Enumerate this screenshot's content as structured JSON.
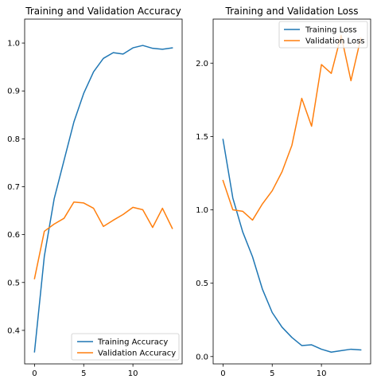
{
  "chart_data": [
    {
      "type": "line",
      "title": "Training and Validation Accuracy",
      "xlabel": "",
      "ylabel": "",
      "xlim": [
        -1,
        15
      ],
      "ylim": [
        0.33,
        1.05
      ],
      "x": [
        0,
        1,
        2,
        3,
        4,
        5,
        6,
        7,
        8,
        9,
        10,
        11,
        12,
        13,
        14
      ],
      "xticks": [
        0,
        5,
        10
      ],
      "xtick_labels": [
        "0",
        "5",
        "10"
      ],
      "yticks": [
        0.4,
        0.5,
        0.6,
        0.7,
        0.8,
        0.9,
        1.0
      ],
      "ytick_labels": [
        "0.4",
        "0.5",
        "0.6",
        "0.7",
        "0.8",
        "0.9",
        "1.0"
      ],
      "legend_position": "lower-right",
      "series": [
        {
          "name": "Training Accuracy",
          "color": "#1f77b4",
          "values": [
            0.355,
            0.555,
            0.675,
            0.755,
            0.835,
            0.895,
            0.94,
            0.968,
            0.98,
            0.977,
            0.99,
            0.995,
            0.989,
            0.987,
            0.99
          ]
        },
        {
          "name": "Validation Accuracy",
          "color": "#ff7f0e",
          "values": [
            0.508,
            0.607,
            0.622,
            0.634,
            0.668,
            0.666,
            0.655,
            0.617,
            0.63,
            0.642,
            0.657,
            0.652,
            0.615,
            0.655,
            0.613
          ]
        }
      ]
    },
    {
      "type": "line",
      "title": "Training and Validation Loss",
      "xlabel": "",
      "ylabel": "",
      "xlim": [
        -1,
        15
      ],
      "ylim": [
        -0.05,
        2.3
      ],
      "x": [
        0,
        1,
        2,
        3,
        4,
        5,
        6,
        7,
        8,
        9,
        10,
        11,
        12,
        13,
        14
      ],
      "xticks": [
        0,
        5,
        10
      ],
      "xtick_labels": [
        "0",
        "5",
        "10"
      ],
      "yticks": [
        0.0,
        0.5,
        1.0,
        1.5,
        2.0
      ],
      "ytick_labels": [
        "0.0",
        "0.5",
        "1.0",
        "1.5",
        "2.0"
      ],
      "legend_position": "upper-right",
      "series": [
        {
          "name": "Training Loss",
          "color": "#1f77b4",
          "values": [
            1.48,
            1.08,
            0.85,
            0.68,
            0.46,
            0.3,
            0.2,
            0.13,
            0.075,
            0.08,
            0.05,
            0.03,
            0.04,
            0.05,
            0.045
          ]
        },
        {
          "name": "Validation Loss",
          "color": "#ff7f0e",
          "values": [
            1.2,
            1.0,
            0.99,
            0.93,
            1.04,
            1.13,
            1.26,
            1.44,
            1.76,
            1.57,
            1.99,
            1.93,
            2.19,
            1.88,
            2.17
          ]
        }
      ]
    }
  ]
}
